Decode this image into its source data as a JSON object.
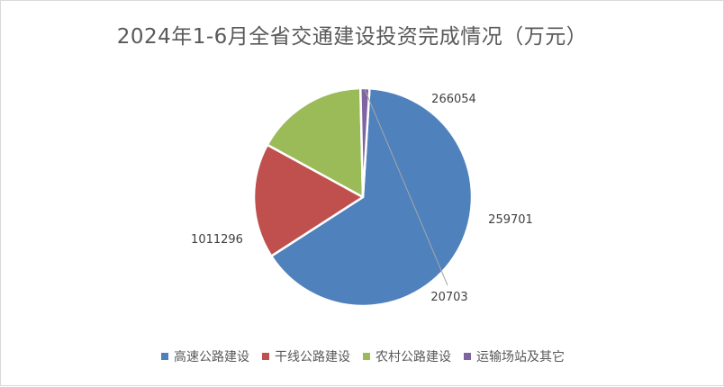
{
  "chart_data": {
    "type": "pie",
    "title": "2024年1-6月全省交通建设投资完成情况（万元）",
    "categories": [
      "高速公路建设",
      "干线公路建设",
      "农村公路建设",
      "运输场站及其它"
    ],
    "values": [
      1011296,
      266054,
      259701,
      20703
    ],
    "labels": [
      "1011296",
      "266054",
      "259701",
      "20703"
    ],
    "colors": [
      "#4f81bd",
      "#c0504d",
      "#9bbb59",
      "#8064a2"
    ],
    "legend_position": "bottom",
    "start_angle_deg": 3.5
  }
}
